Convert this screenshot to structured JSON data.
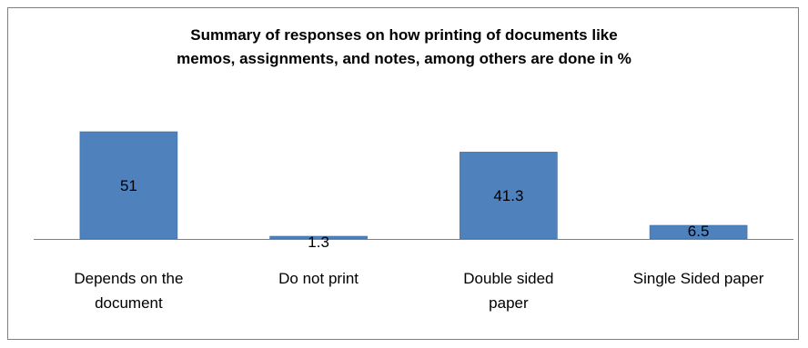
{
  "chart_data": {
    "type": "bar",
    "title_lines": [
      "Summary of responses on how printing of documents like",
      "memos, assignments, and notes, among others are done in %"
    ],
    "categories": [
      [
        "Depends on the",
        "document"
      ],
      [
        "Do not print"
      ],
      [
        "Double sided",
        "paper"
      ],
      [
        "Single Sided paper"
      ]
    ],
    "values": [
      51,
      1.3,
      41.3,
      6.5
    ],
    "data_labels": [
      "51",
      "1.3",
      "41.3",
      "6.5"
    ],
    "ylim": [
      0,
      52
    ],
    "bar_color": "#4f81bd",
    "bar_edge_color": "#3a6a9f",
    "axis_color": "#808080",
    "grid": false,
    "legend": "none"
  }
}
